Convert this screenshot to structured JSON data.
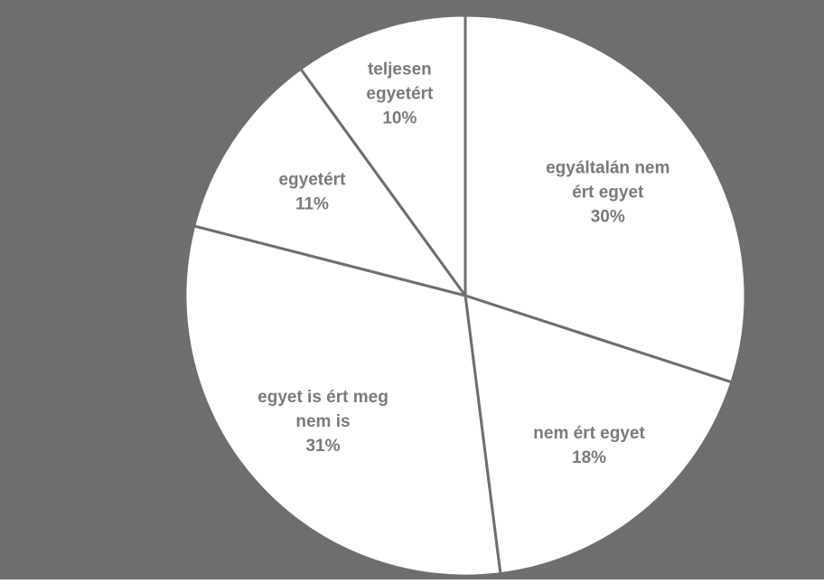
{
  "chart_data": {
    "type": "pie",
    "title": "",
    "start_angle_deg": 0,
    "direction": "clockwise",
    "colors": {
      "background": "#6e6e6e",
      "slice_fill": "#ffffff",
      "slice_border": "#6e6e6e",
      "label_text": "#7a7a7a"
    },
    "slices": [
      {
        "label_lines": [
          "egyáltalán nem",
          "ért egyet"
        ],
        "percent_label": "30%",
        "value": 30
      },
      {
        "label_lines": [
          "nem ért egyet"
        ],
        "percent_label": "18%",
        "value": 18
      },
      {
        "label_lines": [
          "egyet is ért meg",
          "nem is"
        ],
        "percent_label": "31%",
        "value": 31
      },
      {
        "label_lines": [
          "egyetért"
        ],
        "percent_label": "11%",
        "value": 11
      },
      {
        "label_lines": [
          "teljesen",
          "egyetért"
        ],
        "percent_label": "10%",
        "value": 10
      }
    ]
  }
}
